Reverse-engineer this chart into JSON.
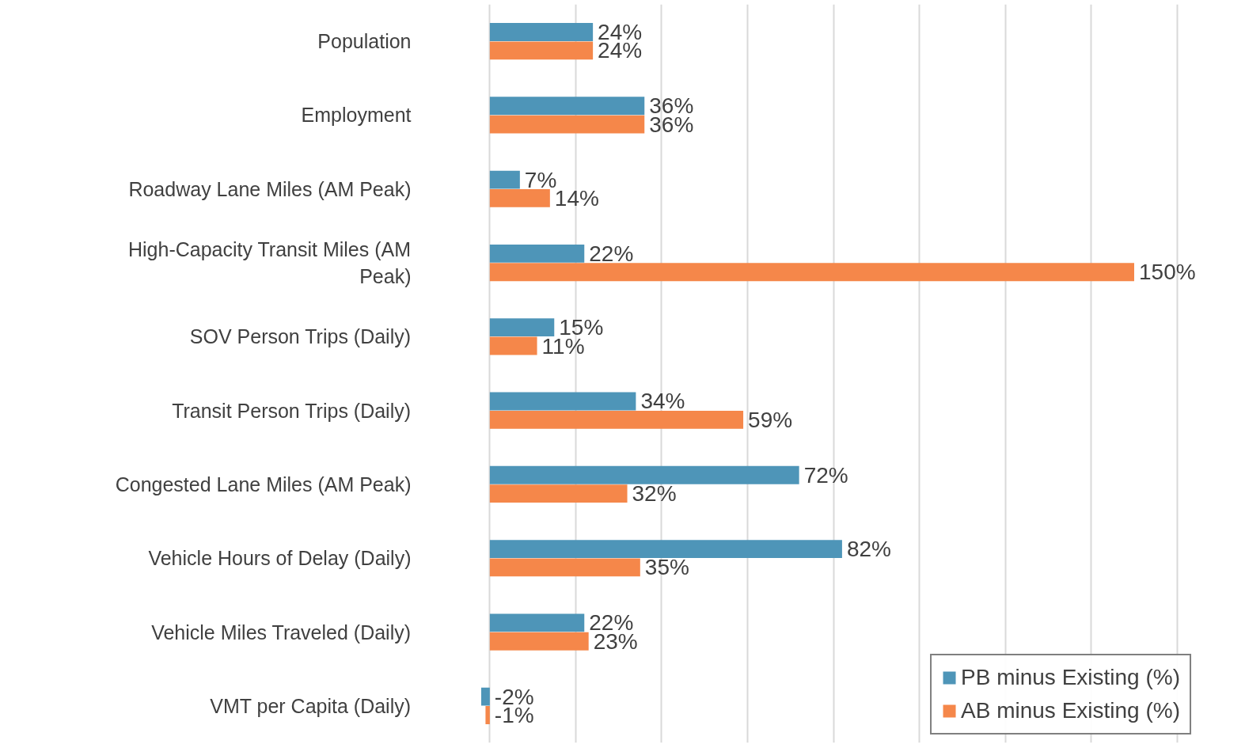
{
  "chart_data": {
    "type": "bar",
    "orientation": "horizontal",
    "categories": [
      "Population",
      "Employment",
      "Roadway Lane Miles (AM Peak)",
      "High-Capacity Transit Miles (AM Peak)",
      "SOV Person Trips (Daily)",
      "Transit Person Trips (Daily)",
      "Congested Lane Miles (AM Peak)",
      "Vehicle Hours of Delay (Daily)",
      "Vehicle Miles Traveled (Daily)",
      "VMT per Capita (Daily)"
    ],
    "series": [
      {
        "name": "PB minus Existing (%)",
        "color": "#4e95b8",
        "values": [
          24,
          36,
          7,
          22,
          15,
          34,
          72,
          82,
          22,
          -2
        ],
        "value_labels": [
          "24%",
          "36%",
          "7%",
          "22%",
          "15%",
          "34%",
          "72%",
          "82%",
          "22%",
          "-2%"
        ]
      },
      {
        "name": "AB minus Existing (%)",
        "color": "#f5874a",
        "values": [
          24,
          36,
          14,
          150,
          11,
          59,
          32,
          35,
          23,
          -1
        ],
        "value_labels": [
          "24%",
          "36%",
          "14%",
          "150%",
          "11%",
          "59%",
          "32%",
          "35%",
          "23%",
          "-1%"
        ]
      }
    ],
    "tick_labels": "y",
    "grid": "x",
    "legend": "bottom right"
  }
}
